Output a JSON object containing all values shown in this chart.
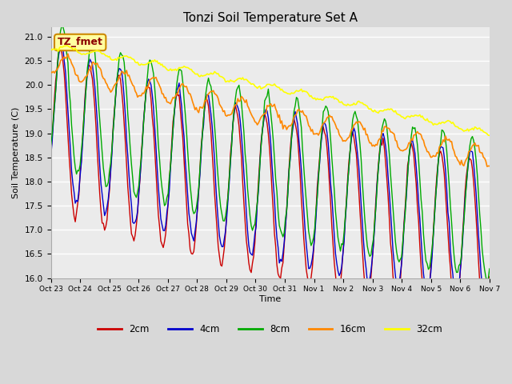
{
  "title": "Tonzi Soil Temperature Set A",
  "ylabel": "Soil Temperature (C)",
  "xlabel": "Time",
  "annotation": "TZ_fmet",
  "ylim": [
    16.0,
    21.2
  ],
  "yticks": [
    16.0,
    16.5,
    17.0,
    17.5,
    18.0,
    18.5,
    19.0,
    19.5,
    20.0,
    20.5,
    21.0
  ],
  "colors": {
    "2cm": "#cc0000",
    "4cm": "#0000cc",
    "8cm": "#00aa00",
    "16cm": "#ff8800",
    "32cm": "#ffff00"
  },
  "legend_labels": [
    "2cm",
    "4cm",
    "8cm",
    "16cm",
    "32cm"
  ],
  "fig_bg_color": "#d8d8d8",
  "plot_bg_color": "#ebebeb",
  "n_days": 15,
  "x_tick_labels": [
    "Oct 23",
    "Oct 24",
    "Oct 25",
    "Oct 26",
    "Oct 27",
    "Oct 28",
    "Oct 29",
    "Oct 30",
    "Oct 31",
    "Nov 1",
    "Nov 2",
    "Nov 3",
    "Nov 4",
    "Nov 5",
    "Nov 6",
    "Nov 7"
  ]
}
